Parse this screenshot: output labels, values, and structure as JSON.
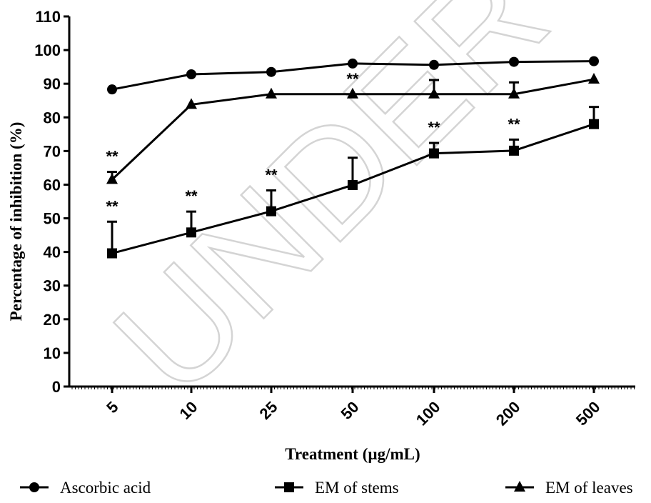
{
  "chart_data": {
    "type": "line",
    "xlabel": "Treatment (µg/mL)",
    "ylabel": "Percentage of inhibition (%)",
    "categories": [
      "5",
      "10",
      "25",
      "50",
      "100",
      "200",
      "500"
    ],
    "ylim": [
      0,
      110
    ],
    "yticks": [
      0,
      10,
      20,
      30,
      40,
      50,
      60,
      70,
      80,
      90,
      100,
      110
    ],
    "grid": false,
    "legend_position": "bottom",
    "watermark": "UNDER PEER",
    "series": [
      {
        "name": "Ascorbic acid",
        "marker": "circle",
        "values": [
          88.3,
          92.8,
          93.5,
          96.0,
          95.6,
          96.5,
          96.7
        ],
        "errors": [
          0,
          0,
          0,
          0,
          0,
          0,
          0
        ],
        "significance": [
          "",
          "",
          "",
          "",
          "",
          "",
          ""
        ]
      },
      {
        "name": "EM of stems",
        "marker": "square",
        "values": [
          39.6,
          45.8,
          52.1,
          59.9,
          69.3,
          70.1,
          78.0
        ],
        "errors": [
          9.4,
          6.2,
          6.2,
          8.1,
          3.1,
          3.3,
          5.1
        ],
        "significance": [
          "**",
          "**",
          "**",
          "",
          "**",
          "**",
          ""
        ]
      },
      {
        "name": "EM of leaves",
        "marker": "triangle",
        "values": [
          61.5,
          83.8,
          86.9,
          86.9,
          86.9,
          86.9,
          91.3
        ],
        "errors": [
          2.3,
          0,
          0,
          0,
          4.2,
          3.5,
          0
        ],
        "significance": [
          "**",
          "",
          "",
          "**",
          "",
          "",
          "*"
        ]
      }
    ]
  }
}
